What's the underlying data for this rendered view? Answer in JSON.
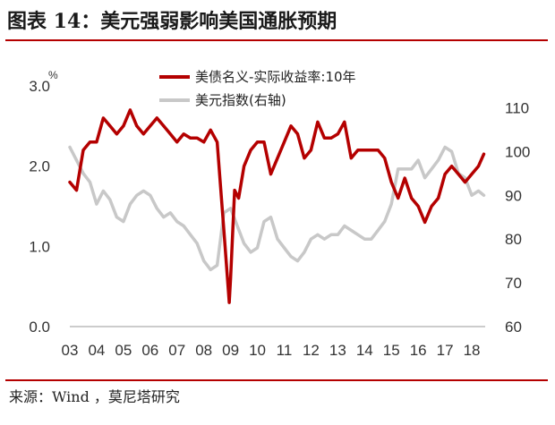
{
  "title": "图表 14：美元强弱影响美国通胀预期",
  "source": "来源：Wind ，莫尼塔研究",
  "colors": {
    "series1": "#b40000",
    "series2": "#c8c8c8",
    "rule": "#b40000"
  },
  "chart_data": {
    "type": "line",
    "left_unit": "%",
    "y_left": {
      "range": [
        0,
        3
      ],
      "ticks": [
        "0.0",
        "1.0",
        "2.0",
        "3.0"
      ]
    },
    "y_right": {
      "range": [
        60,
        115
      ],
      "ticks": [
        "60",
        "70",
        "80",
        "90",
        "100",
        "110"
      ]
    },
    "x_ticks": [
      "03",
      "04",
      "05",
      "06",
      "07",
      "08",
      "09",
      "10",
      "11",
      "12",
      "13",
      "14",
      "15",
      "16",
      "17",
      "18"
    ],
    "grid": false,
    "legend_position": "top-center",
    "series": [
      {
        "name": "美债名义-实际收益率:10年",
        "axis": "left",
        "color": "#b40000",
        "x": [
          2003.0,
          2003.25,
          2003.5,
          2003.75,
          2004.0,
          2004.25,
          2004.5,
          2004.75,
          2005.0,
          2005.25,
          2005.5,
          2005.75,
          2006.0,
          2006.25,
          2006.5,
          2006.75,
          2007.0,
          2007.25,
          2007.5,
          2007.75,
          2008.0,
          2008.25,
          2008.5,
          2008.75,
          2008.95,
          2009.0,
          2009.15,
          2009.3,
          2009.5,
          2009.75,
          2010.0,
          2010.25,
          2010.5,
          2010.75,
          2011.0,
          2011.25,
          2011.5,
          2011.75,
          2012.0,
          2012.25,
          2012.5,
          2012.75,
          2013.0,
          2013.25,
          2013.5,
          2013.75,
          2014.0,
          2014.25,
          2014.5,
          2014.75,
          2015.0,
          2015.25,
          2015.5,
          2015.75,
          2016.0,
          2016.25,
          2016.5,
          2016.75,
          2017.0,
          2017.25,
          2017.5,
          2017.75,
          2018.0,
          2018.25,
          2018.45
        ],
        "y": [
          1.8,
          1.7,
          2.2,
          2.3,
          2.3,
          2.6,
          2.5,
          2.4,
          2.5,
          2.7,
          2.5,
          2.4,
          2.5,
          2.6,
          2.5,
          2.4,
          2.3,
          2.4,
          2.35,
          2.35,
          2.3,
          2.45,
          2.3,
          1.2,
          0.3,
          0.6,
          1.7,
          1.6,
          2.0,
          2.2,
          2.3,
          2.3,
          1.9,
          2.1,
          2.3,
          2.5,
          2.4,
          2.1,
          2.2,
          2.55,
          2.35,
          2.35,
          2.4,
          2.55,
          2.1,
          2.2,
          2.2,
          2.2,
          2.2,
          2.1,
          1.8,
          1.6,
          1.85,
          1.6,
          1.5,
          1.3,
          1.5,
          1.6,
          1.9,
          2.0,
          1.9,
          1.8,
          1.9,
          2.0,
          2.15
        ]
      },
      {
        "name": "美元指数(右轴)",
        "axis": "right",
        "color": "#c8c8c8",
        "x": [
          2003.0,
          2003.25,
          2003.5,
          2003.75,
          2004.0,
          2004.25,
          2004.5,
          2004.75,
          2005.0,
          2005.25,
          2005.5,
          2005.75,
          2006.0,
          2006.25,
          2006.5,
          2006.75,
          2007.0,
          2007.25,
          2007.5,
          2007.75,
          2008.0,
          2008.25,
          2008.5,
          2008.75,
          2009.0,
          2009.25,
          2009.5,
          2009.75,
          2010.0,
          2010.25,
          2010.5,
          2010.75,
          2011.0,
          2011.25,
          2011.5,
          2011.75,
          2012.0,
          2012.25,
          2012.5,
          2012.75,
          2013.0,
          2013.25,
          2013.5,
          2013.75,
          2014.0,
          2014.25,
          2014.5,
          2014.75,
          2015.0,
          2015.25,
          2015.5,
          2015.75,
          2016.0,
          2016.25,
          2016.5,
          2016.75,
          2017.0,
          2017.25,
          2017.5,
          2017.75,
          2018.0,
          2018.25,
          2018.45
        ],
        "y": [
          101,
          98,
          95,
          93,
          88,
          91,
          89,
          85,
          84,
          88,
          90,
          91,
          90,
          87,
          85,
          86,
          84,
          83,
          81,
          79,
          75,
          73,
          74,
          86,
          87,
          83,
          79,
          77,
          78,
          84,
          85,
          80,
          78,
          76,
          75,
          77,
          80,
          81,
          80,
          81,
          81,
          83,
          82,
          81,
          80,
          80,
          82,
          84,
          88,
          96,
          96,
          96,
          98,
          94,
          96,
          98,
          101,
          100,
          95,
          94,
          90,
          91,
          90
        ]
      }
    ]
  }
}
